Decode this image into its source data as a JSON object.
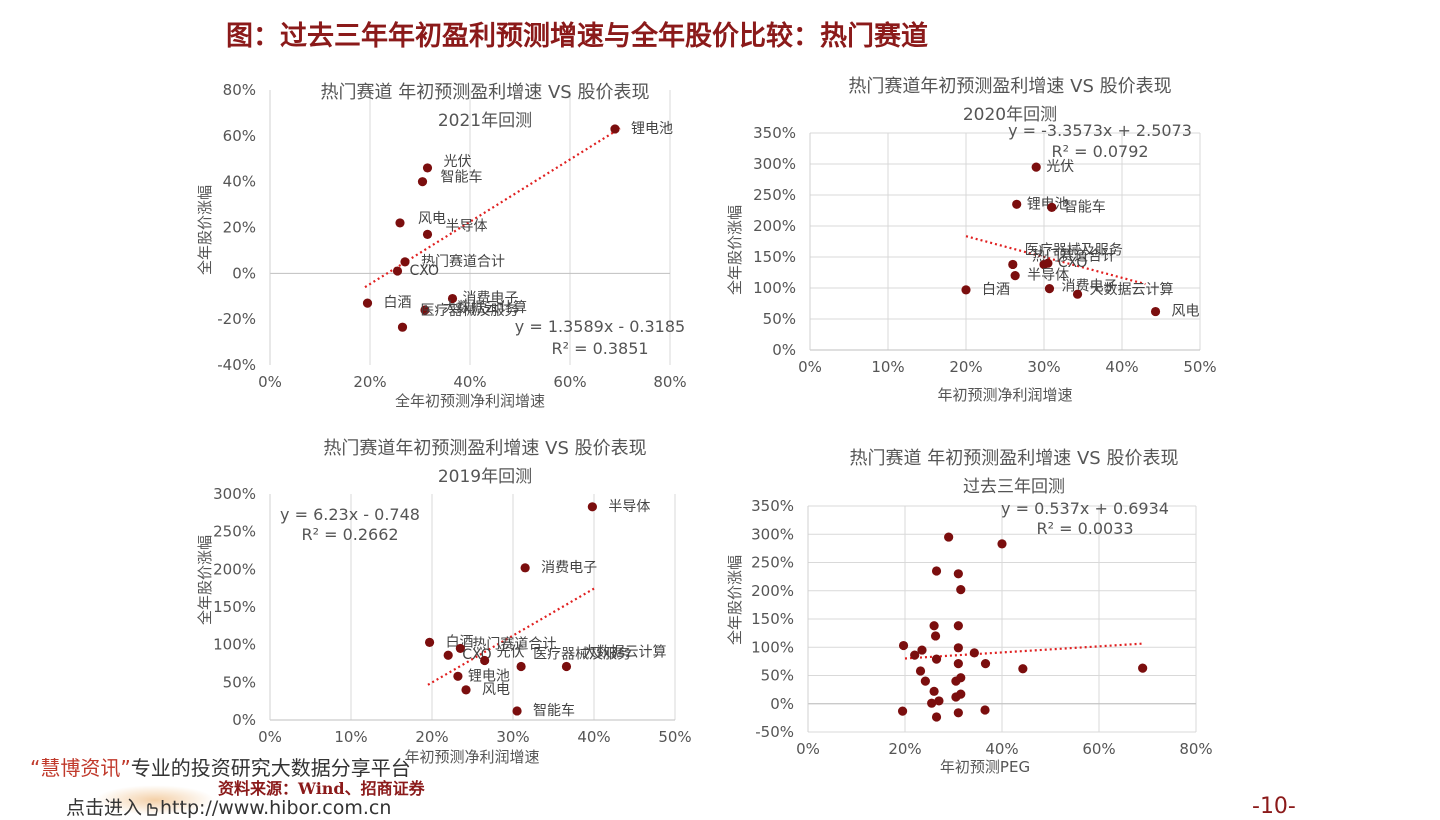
{
  "page": {
    "title": "图：过去三年年初盈利预测增速与全年股价比较：热门赛道",
    "footer_quote_open": "“",
    "footer_brand": "慧博资讯",
    "footer_quote_close": "”",
    "footer_tagline": "专业的投资研究大数据分享平台",
    "source": "资料来源：Wind、招商证券",
    "link_prefix": "点击进入",
    "link_url": "http://www.hibor.com.cn",
    "page_number": "-10-"
  },
  "colors": {
    "point": "#7b0e0e",
    "trend": "#e02020",
    "grid": "#d9d9d9",
    "title": "#8b1a1a"
  },
  "chart_data": [
    {
      "type": "scatter",
      "title": "热门赛道 年初预测盈利增速 VS 股价表现",
      "subtitle": "2021年回测",
      "xlabel": "全年初预测净利润增速",
      "ylabel": "全年股价涨幅",
      "xlim": [
        0,
        0.8
      ],
      "ylim": [
        -0.4,
        0.8
      ],
      "xticks": [
        "0%",
        "20%",
        "40%",
        "60%",
        "80%"
      ],
      "yticks": [
        "-40%",
        "-20%",
        "0%",
        "20%",
        "40%",
        "60%",
        "80%"
      ],
      "grid": "vertical",
      "equation": "y = 1.3589x - 0.3185",
      "r2": "R² = 0.3851",
      "trend": {
        "slope": 1.3589,
        "intercept": -0.3185,
        "x_range": [
          0.19,
          0.7
        ]
      },
      "points": [
        {
          "label": "锂电池",
          "x": 0.69,
          "y": 0.63
        },
        {
          "label": "光伏",
          "x": 0.315,
          "y": 0.46
        },
        {
          "label": "智能车",
          "x": 0.305,
          "y": 0.4
        },
        {
          "label": "风电",
          "x": 0.26,
          "y": 0.22
        },
        {
          "label": "半导体",
          "x": 0.315,
          "y": 0.17
        },
        {
          "label": "热门赛道合计",
          "x": 0.27,
          "y": 0.05
        },
        {
          "label": "CXO",
          "x": 0.255,
          "y": 0.01
        },
        {
          "label": "白酒",
          "x": 0.195,
          "y": -0.13
        },
        {
          "label": "消费电子",
          "x": 0.365,
          "y": -0.11
        },
        {
          "label": "大数据云计算",
          "x": 0.31,
          "y": -0.16
        },
        {
          "label": "医疗器械及服务",
          "x": 0.265,
          "y": -0.235
        }
      ]
    },
    {
      "type": "scatter",
      "title": "热门赛道年初预测盈利增速 VS 股价表现",
      "subtitle": "2020年回测",
      "xlabel": "年初预测净利润增速",
      "ylabel": "全年股价涨幅",
      "xlim": [
        0,
        0.5
      ],
      "ylim": [
        0,
        3.5
      ],
      "xticks": [
        "0%",
        "10%",
        "20%",
        "30%",
        "40%",
        "50%"
      ],
      "yticks": [
        "0%",
        "50%",
        "100%",
        "150%",
        "200%",
        "250%",
        "300%",
        "350%"
      ],
      "grid": "both",
      "equation": "y = -3.3573x + 2.5073",
      "r2": "R² = 0.0792",
      "trend": {
        "slope": -3.3573,
        "intercept": 2.5073,
        "x_range": [
          0.2,
          0.43
        ]
      },
      "points": [
        {
          "label": "光伏",
          "x": 0.29,
          "y": 2.95
        },
        {
          "label": "锂电池",
          "x": 0.265,
          "y": 2.35
        },
        {
          "label": "智能车",
          "x": 0.31,
          "y": 2.3
        },
        {
          "label": "医疗器械及服务",
          "x": 0.26,
          "y": 1.38
        },
        {
          "label": "热门赛道合计",
          "x": 0.3,
          "y": 1.38
        },
        {
          "label": "CXO",
          "x": 0.305,
          "y": 1.4
        },
        {
          "label": "半导体",
          "x": 0.263,
          "y": 1.2
        },
        {
          "label": "白酒",
          "x": 0.2,
          "y": 0.97
        },
        {
          "label": "消费电子",
          "x": 0.307,
          "y": 0.99
        },
        {
          "label": "大数据云计算",
          "x": 0.343,
          "y": 0.9
        },
        {
          "label": "风电",
          "x": 0.443,
          "y": 0.62
        }
      ]
    },
    {
      "type": "scatter",
      "title": "热门赛道年初预测盈利增速 VS 股价表现",
      "subtitle": "2019年回测",
      "xlabel": "年初预测净利润增速",
      "ylabel": "全年股价涨幅",
      "xlim": [
        0,
        0.5
      ],
      "ylim": [
        0,
        3.0
      ],
      "xticks": [
        "0%",
        "10%",
        "20%",
        "30%",
        "40%",
        "50%"
      ],
      "yticks": [
        "0%",
        "50%",
        "100%",
        "150%",
        "200%",
        "250%",
        "300%"
      ],
      "grid": "vertical",
      "equation": "y = 6.23x - 0.748",
      "r2": "R² = 0.2662",
      "trend": {
        "slope": 6.23,
        "intercept": -0.748,
        "x_range": [
          0.195,
          0.4
        ]
      },
      "points": [
        {
          "label": "半导体",
          "x": 0.398,
          "y": 2.83
        },
        {
          "label": "消费电子",
          "x": 0.315,
          "y": 2.02
        },
        {
          "label": "白酒",
          "x": 0.197,
          "y": 1.03
        },
        {
          "label": "热门赛道合计",
          "x": 0.235,
          "y": 0.95
        },
        {
          "label": "CXO",
          "x": 0.22,
          "y": 0.86
        },
        {
          "label": "光伏",
          "x": 0.265,
          "y": 0.79
        },
        {
          "label": "医疗器械及服务",
          "x": 0.31,
          "y": 0.71
        },
        {
          "label": "大数据云计算",
          "x": 0.366,
          "y": 0.71
        },
        {
          "label": "锂电池",
          "x": 0.232,
          "y": 0.58
        },
        {
          "label": "风电",
          "x": 0.242,
          "y": 0.4
        },
        {
          "label": "智能车",
          "x": 0.305,
          "y": 0.12
        }
      ]
    },
    {
      "type": "scatter",
      "title": "热门赛道 年初预测盈利增速 VS 股价表现",
      "subtitle": "过去三年回测",
      "xlabel": "年初预测PEG",
      "ylabel": "全年股价涨幅",
      "xlim": [
        0,
        0.8
      ],
      "ylim": [
        -0.5,
        3.5
      ],
      "xticks": [
        "0%",
        "20%",
        "40%",
        "60%",
        "80%"
      ],
      "yticks": [
        "-50%",
        "0%",
        "50%",
        "100%",
        "150%",
        "200%",
        "250%",
        "300%",
        "350%"
      ],
      "grid": "both",
      "equation": "y = 0.537x + 0.6934",
      "r2": "R² = 0.0033",
      "trend": {
        "slope": 0.537,
        "intercept": 0.6934,
        "x_range": [
          0.2,
          0.69
        ]
      },
      "points": [
        {
          "x": 0.29,
          "y": 2.95
        },
        {
          "x": 0.4,
          "y": 2.83
        },
        {
          "x": 0.265,
          "y": 2.35
        },
        {
          "x": 0.31,
          "y": 2.3
        },
        {
          "x": 0.315,
          "y": 2.02
        },
        {
          "x": 0.26,
          "y": 1.38
        },
        {
          "x": 0.31,
          "y": 1.38
        },
        {
          "x": 0.263,
          "y": 1.2
        },
        {
          "x": 0.197,
          "y": 1.03
        },
        {
          "x": 0.31,
          "y": 0.99
        },
        {
          "x": 0.235,
          "y": 0.95
        },
        {
          "x": 0.343,
          "y": 0.9
        },
        {
          "x": 0.22,
          "y": 0.86
        },
        {
          "x": 0.265,
          "y": 0.79
        },
        {
          "x": 0.31,
          "y": 0.71
        },
        {
          "x": 0.366,
          "y": 0.71
        },
        {
          "x": 0.69,
          "y": 0.63
        },
        {
          "x": 0.443,
          "y": 0.62
        },
        {
          "x": 0.232,
          "y": 0.58
        },
        {
          "x": 0.315,
          "y": 0.46
        },
        {
          "x": 0.305,
          "y": 0.4
        },
        {
          "x": 0.242,
          "y": 0.4
        },
        {
          "x": 0.26,
          "y": 0.22
        },
        {
          "x": 0.315,
          "y": 0.17
        },
        {
          "x": 0.305,
          "y": 0.12
        },
        {
          "x": 0.27,
          "y": 0.05
        },
        {
          "x": 0.255,
          "y": 0.01
        },
        {
          "x": 0.195,
          "y": -0.13
        },
        {
          "x": 0.365,
          "y": -0.11
        },
        {
          "x": 0.31,
          "y": -0.16
        },
        {
          "x": 0.265,
          "y": -0.235
        }
      ]
    }
  ]
}
